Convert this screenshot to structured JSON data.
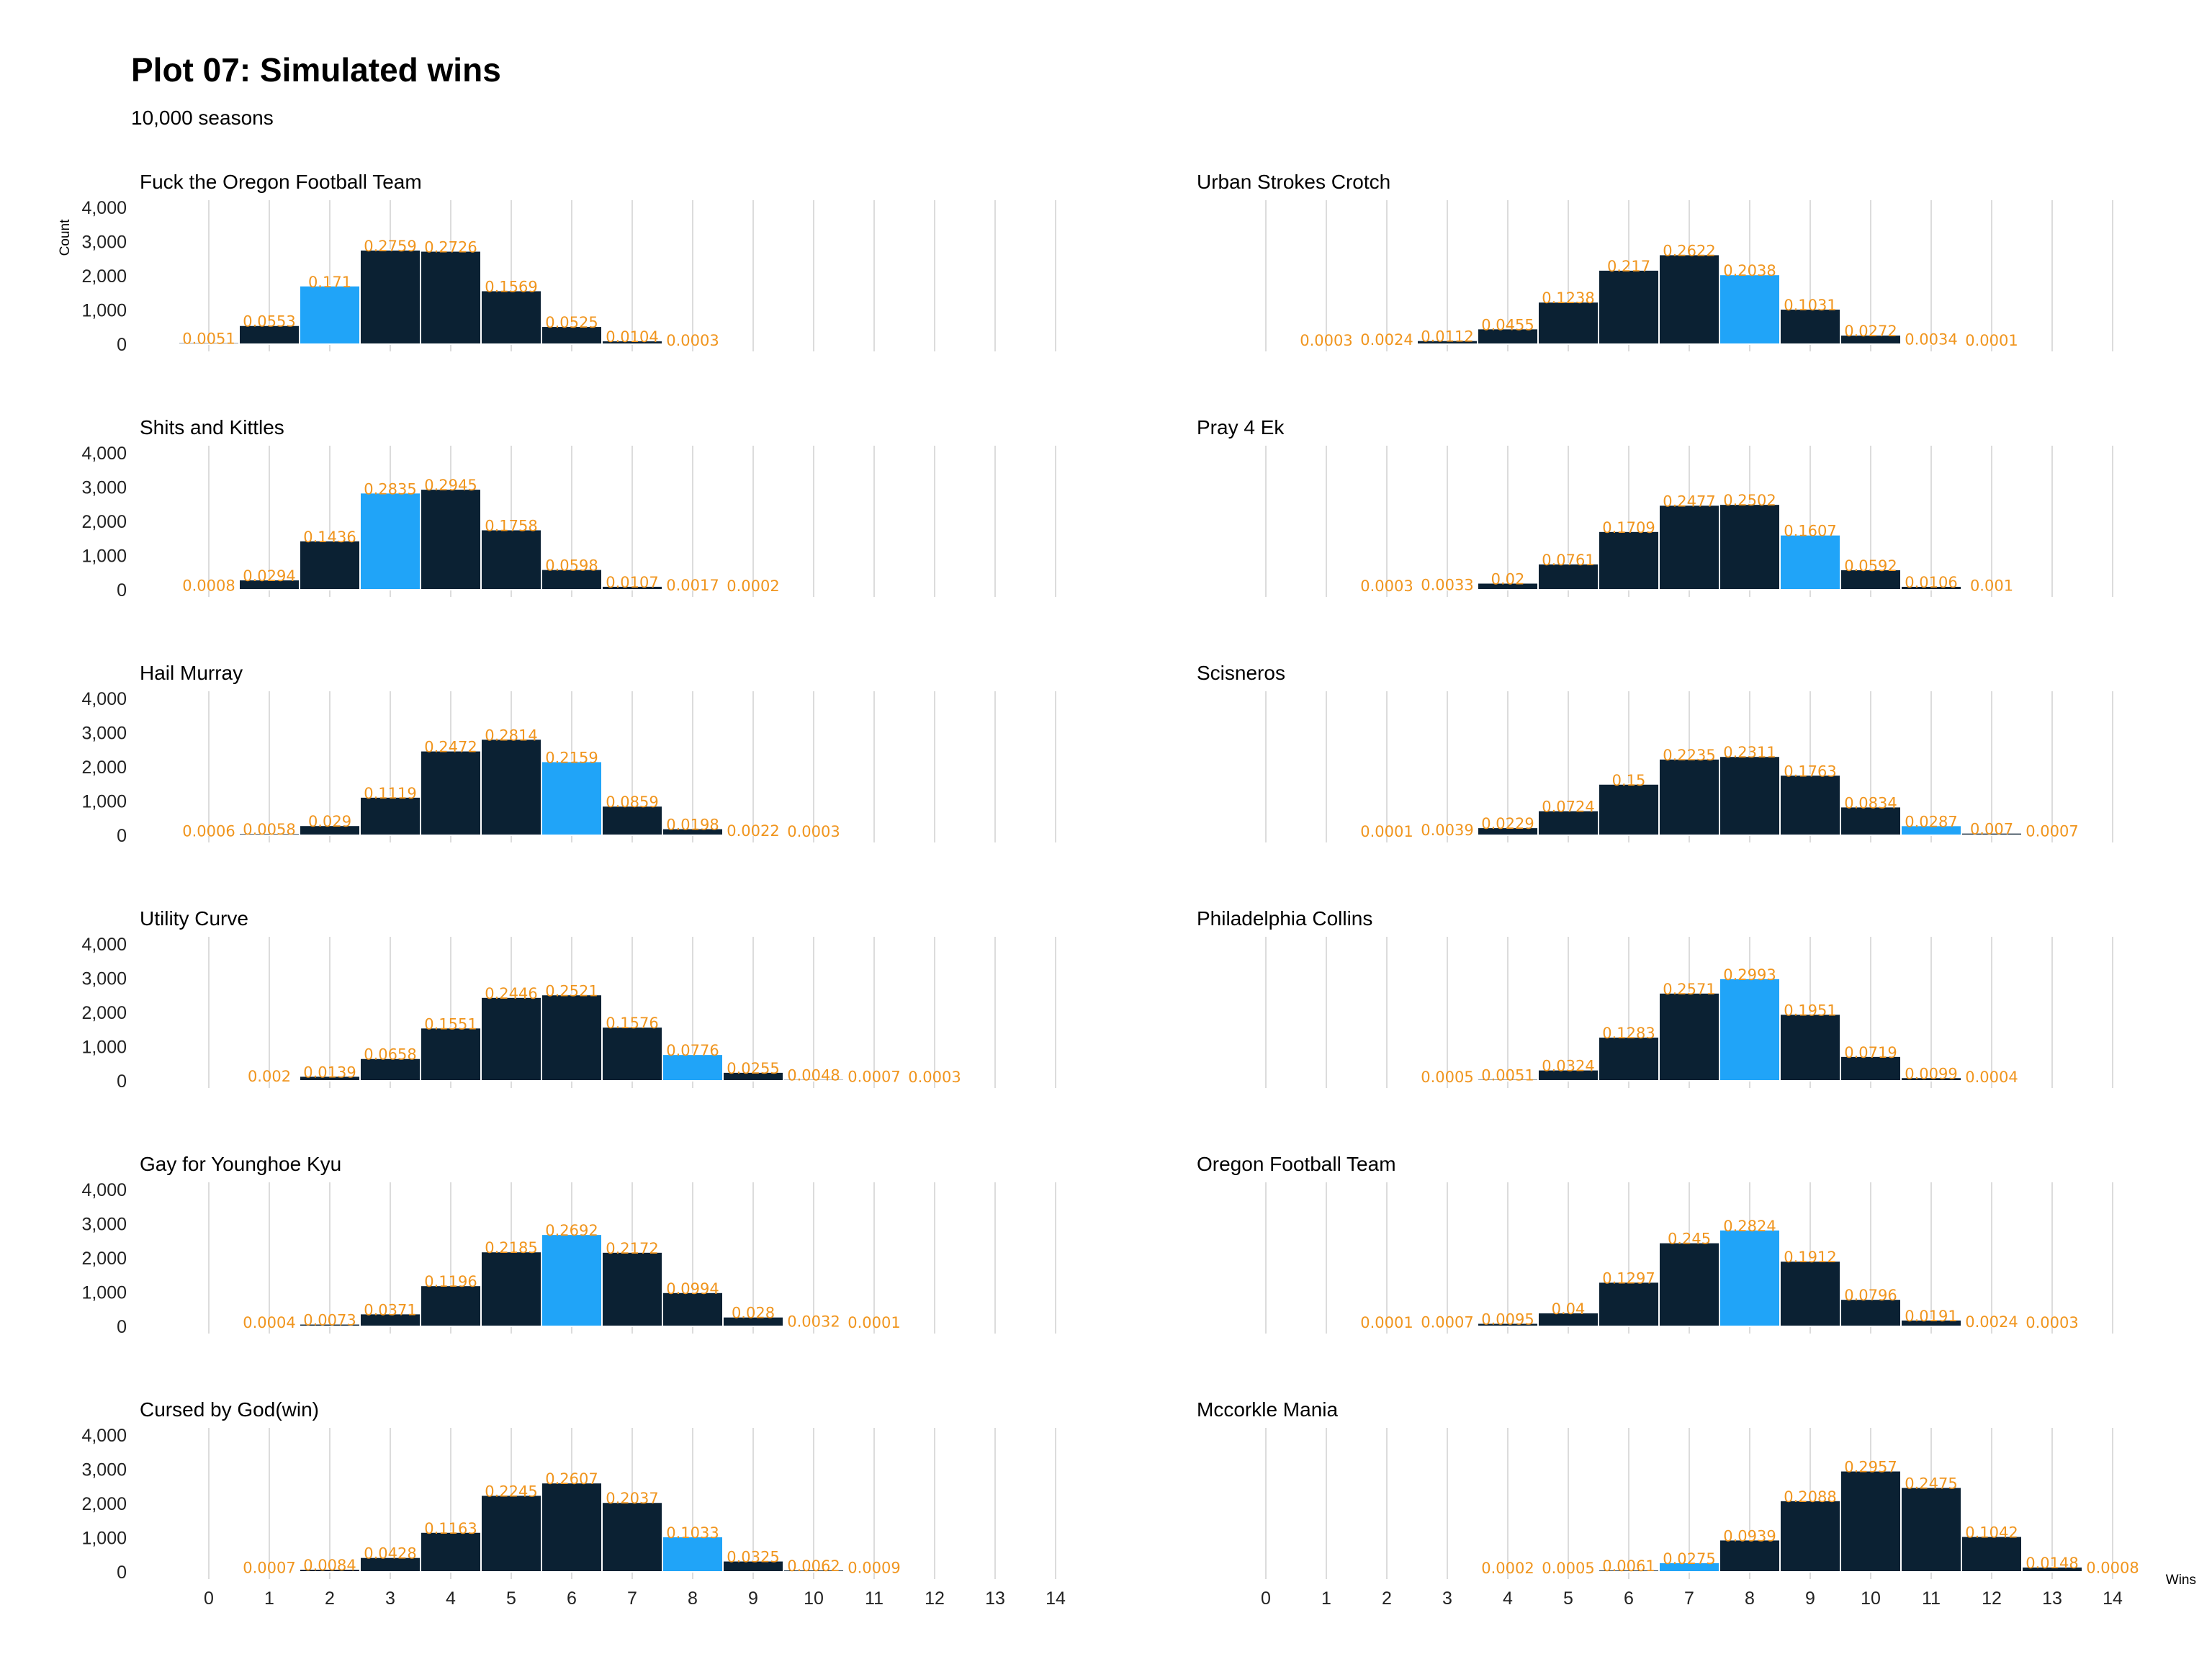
{
  "chart_data": {
    "type": "bar",
    "title": "Plot 07: Simulated wins",
    "subtitle": "10,000 seasons",
    "xlabel": "Wins",
    "ylabel": "Count",
    "x_ticks": [
      "0",
      "1",
      "2",
      "3",
      "4",
      "5",
      "6",
      "7",
      "8",
      "9",
      "10",
      "11",
      "12",
      "13",
      "14"
    ],
    "y_ticks": [
      "0",
      "1,000",
      "2,000",
      "3,000",
      "4,000"
    ],
    "xlim": [
      0,
      14
    ],
    "ylim": [
      0,
      4000
    ],
    "grid": "vertical",
    "colors": {
      "bar": "#0b2133",
      "highlight": "#20a4f8",
      "label": "#f0951e",
      "grid": "#dcdcdc"
    },
    "panels": [
      {
        "name": "Fuck the Oregon Football Team",
        "highlight_win": 2,
        "points": [
          {
            "win": 0,
            "prob": 0.0051,
            "label": "0.0051"
          },
          {
            "win": 1,
            "prob": 0.0553,
            "label": "0.0553"
          },
          {
            "win": 2,
            "prob": 0.171,
            "label": "0.171"
          },
          {
            "win": 3,
            "prob": 0.2759,
            "label": "0.2759"
          },
          {
            "win": 4,
            "prob": 0.2726,
            "label": "0.2726"
          },
          {
            "win": 5,
            "prob": 0.1569,
            "label": "0.1569"
          },
          {
            "win": 6,
            "prob": 0.0525,
            "label": "0.0525"
          },
          {
            "win": 7,
            "prob": 0.0104,
            "label": "0.0104"
          },
          {
            "win": 8,
            "prob": 0.0003,
            "label": "0.0003"
          }
        ]
      },
      {
        "name": "Urban Strokes Crotch",
        "highlight_win": 8,
        "points": [
          {
            "win": 1,
            "prob": 0.0003,
            "label": "0.0003"
          },
          {
            "win": 2,
            "prob": 0.0024,
            "label": "0.0024"
          },
          {
            "win": 3,
            "prob": 0.0112,
            "label": "0.0112"
          },
          {
            "win": 4,
            "prob": 0.0455,
            "label": "0.0455"
          },
          {
            "win": 5,
            "prob": 0.1238,
            "label": "0.1238"
          },
          {
            "win": 6,
            "prob": 0.217,
            "label": "0.217"
          },
          {
            "win": 7,
            "prob": 0.2622,
            "label": "0.2622"
          },
          {
            "win": 8,
            "prob": 0.2038,
            "label": "0.2038"
          },
          {
            "win": 9,
            "prob": 0.1031,
            "label": "0.1031"
          },
          {
            "win": 10,
            "prob": 0.0272,
            "label": "0.0272"
          },
          {
            "win": 11,
            "prob": 0.0034,
            "label": "0.0034"
          },
          {
            "win": 12,
            "prob": 0.0001,
            "label": "0.0001"
          }
        ]
      },
      {
        "name": "Shits and Kittles",
        "highlight_win": 3,
        "points": [
          {
            "win": 0,
            "prob": 0.0008,
            "label": "0.0008"
          },
          {
            "win": 1,
            "prob": 0.0294,
            "label": "0.0294"
          },
          {
            "win": 2,
            "prob": 0.1436,
            "label": "0.1436"
          },
          {
            "win": 3,
            "prob": 0.2835,
            "label": "0.2835"
          },
          {
            "win": 4,
            "prob": 0.2945,
            "label": "0.2945"
          },
          {
            "win": 5,
            "prob": 0.1758,
            "label": "0.1758"
          },
          {
            "win": 6,
            "prob": 0.0598,
            "label": "0.0598"
          },
          {
            "win": 7,
            "prob": 0.0107,
            "label": "0.0107"
          },
          {
            "win": 8,
            "prob": 0.0017,
            "label": "0.0017"
          },
          {
            "win": 9,
            "prob": 0.0002,
            "label": "0.0002"
          }
        ]
      },
      {
        "name": "Pray 4 Ek",
        "highlight_win": 9,
        "points": [
          {
            "win": 2,
            "prob": 0.0003,
            "label": "0.0003"
          },
          {
            "win": 3,
            "prob": 0.0033,
            "label": "0.0033"
          },
          {
            "win": 4,
            "prob": 0.02,
            "label": "0.02"
          },
          {
            "win": 5,
            "prob": 0.0761,
            "label": "0.0761"
          },
          {
            "win": 6,
            "prob": 0.1709,
            "label": "0.1709"
          },
          {
            "win": 7,
            "prob": 0.2477,
            "label": "0.2477"
          },
          {
            "win": 8,
            "prob": 0.2502,
            "label": "0.2502"
          },
          {
            "win": 9,
            "prob": 0.1607,
            "label": "0.1607"
          },
          {
            "win": 10,
            "prob": 0.0592,
            "label": "0.0592"
          },
          {
            "win": 11,
            "prob": 0.0106,
            "label": "0.0106"
          },
          {
            "win": 12,
            "prob": 0.001,
            "label": "0.001"
          }
        ]
      },
      {
        "name": "Hail Murray",
        "highlight_win": 6,
        "points": [
          {
            "win": 0,
            "prob": 0.0006,
            "label": "0.0006"
          },
          {
            "win": 1,
            "prob": 0.0058,
            "label": "0.0058"
          },
          {
            "win": 2,
            "prob": 0.029,
            "label": "0.029"
          },
          {
            "win": 3,
            "prob": 0.1119,
            "label": "0.1119"
          },
          {
            "win": 4,
            "prob": 0.2472,
            "label": "0.2472"
          },
          {
            "win": 5,
            "prob": 0.2814,
            "label": "0.2814"
          },
          {
            "win": 6,
            "prob": 0.2159,
            "label": "0.2159"
          },
          {
            "win": 7,
            "prob": 0.0859,
            "label": "0.0859"
          },
          {
            "win": 8,
            "prob": 0.0198,
            "label": "0.0198"
          },
          {
            "win": 9,
            "prob": 0.0022,
            "label": "0.0022"
          },
          {
            "win": 10,
            "prob": 0.0003,
            "label": "0.0003"
          }
        ]
      },
      {
        "name": "Scisneros",
        "highlight_win": 11,
        "points": [
          {
            "win": 2,
            "prob": 0.0001,
            "label": "0.0001"
          },
          {
            "win": 3,
            "prob": 0.0039,
            "label": "0.0039"
          },
          {
            "win": 4,
            "prob": 0.0229,
            "label": "0.0229"
          },
          {
            "win": 5,
            "prob": 0.0724,
            "label": "0.0724"
          },
          {
            "win": 6,
            "prob": 0.15,
            "label": "0.15"
          },
          {
            "win": 7,
            "prob": 0.2235,
            "label": "0.2235"
          },
          {
            "win": 8,
            "prob": 0.2311,
            "label": "0.2311"
          },
          {
            "win": 9,
            "prob": 0.1763,
            "label": "0.1763"
          },
          {
            "win": 10,
            "prob": 0.0834,
            "label": "0.0834"
          },
          {
            "win": 11,
            "prob": 0.0287,
            "label": "0.0287"
          },
          {
            "win": 12,
            "prob": 0.007,
            "label": "0.007"
          },
          {
            "win": 13,
            "prob": 0.0007,
            "label": "0.0007"
          }
        ]
      },
      {
        "name": "Utility Curve",
        "highlight_win": 8,
        "points": [
          {
            "win": 1,
            "prob": 0.002,
            "label": "0.002"
          },
          {
            "win": 2,
            "prob": 0.0139,
            "label": "0.0139"
          },
          {
            "win": 3,
            "prob": 0.0658,
            "label": "0.0658"
          },
          {
            "win": 4,
            "prob": 0.1551,
            "label": "0.1551"
          },
          {
            "win": 5,
            "prob": 0.2446,
            "label": "0.2446"
          },
          {
            "win": 6,
            "prob": 0.2521,
            "label": "0.2521"
          },
          {
            "win": 7,
            "prob": 0.1576,
            "label": "0.1576"
          },
          {
            "win": 8,
            "prob": 0.0776,
            "label": "0.0776"
          },
          {
            "win": 9,
            "prob": 0.0255,
            "label": "0.0255"
          },
          {
            "win": 10,
            "prob": 0.0048,
            "label": "0.0048"
          },
          {
            "win": 11,
            "prob": 0.0007,
            "label": "0.0007"
          },
          {
            "win": 12,
            "prob": 0.0003,
            "label": "0.0003"
          }
        ]
      },
      {
        "name": "Philadelphia Collins",
        "highlight_win": 8,
        "points": [
          {
            "win": 3,
            "prob": 0.0005,
            "label": "0.0005"
          },
          {
            "win": 4,
            "prob": 0.0051,
            "label": "0.0051"
          },
          {
            "win": 5,
            "prob": 0.0324,
            "label": "0.0324"
          },
          {
            "win": 6,
            "prob": 0.1283,
            "label": "0.1283"
          },
          {
            "win": 7,
            "prob": 0.2571,
            "label": "0.2571"
          },
          {
            "win": 8,
            "prob": 0.2993,
            "label": "0.2993"
          },
          {
            "win": 9,
            "prob": 0.1951,
            "label": "0.1951"
          },
          {
            "win": 10,
            "prob": 0.0719,
            "label": "0.0719"
          },
          {
            "win": 11,
            "prob": 0.0099,
            "label": "0.0099"
          },
          {
            "win": 12,
            "prob": 0.0004,
            "label": "0.0004"
          }
        ]
      },
      {
        "name": "Gay for Younghoe Kyu",
        "highlight_win": 6,
        "points": [
          {
            "win": 1,
            "prob": 0.0004,
            "label": "0.0004"
          },
          {
            "win": 2,
            "prob": 0.0073,
            "label": "0.0073"
          },
          {
            "win": 3,
            "prob": 0.0371,
            "label": "0.0371"
          },
          {
            "win": 4,
            "prob": 0.1196,
            "label": "0.1196"
          },
          {
            "win": 5,
            "prob": 0.2185,
            "label": "0.2185"
          },
          {
            "win": 6,
            "prob": 0.2692,
            "label": "0.2692"
          },
          {
            "win": 7,
            "prob": 0.2172,
            "label": "0.2172"
          },
          {
            "win": 8,
            "prob": 0.0994,
            "label": "0.0994"
          },
          {
            "win": 9,
            "prob": 0.028,
            "label": "0.028"
          },
          {
            "win": 10,
            "prob": 0.0032,
            "label": "0.0032"
          },
          {
            "win": 11,
            "prob": 0.0001,
            "label": "0.0001"
          }
        ]
      },
      {
        "name": "Oregon Football Team",
        "highlight_win": 8,
        "points": [
          {
            "win": 2,
            "prob": 0.0001,
            "label": "0.0001"
          },
          {
            "win": 3,
            "prob": 0.0007,
            "label": "0.0007"
          },
          {
            "win": 4,
            "prob": 0.0095,
            "label": "0.0095"
          },
          {
            "win": 5,
            "prob": 0.04,
            "label": "0.04"
          },
          {
            "win": 6,
            "prob": 0.1297,
            "label": "0.1297"
          },
          {
            "win": 7,
            "prob": 0.245,
            "label": "0.245"
          },
          {
            "win": 8,
            "prob": 0.2824,
            "label": "0.2824"
          },
          {
            "win": 9,
            "prob": 0.1912,
            "label": "0.1912"
          },
          {
            "win": 10,
            "prob": 0.0796,
            "label": "0.0796"
          },
          {
            "win": 11,
            "prob": 0.0191,
            "label": "0.0191"
          },
          {
            "win": 12,
            "prob": 0.0024,
            "label": "0.0024"
          },
          {
            "win": 13,
            "prob": 0.0003,
            "label": "0.0003"
          }
        ]
      },
      {
        "name": "Cursed by God(win)",
        "highlight_win": 8,
        "points": [
          {
            "win": 1,
            "prob": 0.0007,
            "label": "0.0007"
          },
          {
            "win": 2,
            "prob": 0.0084,
            "label": "0.0084"
          },
          {
            "win": 3,
            "prob": 0.0428,
            "label": "0.0428"
          },
          {
            "win": 4,
            "prob": 0.1163,
            "label": "0.1163"
          },
          {
            "win": 5,
            "prob": 0.2245,
            "label": "0.2245"
          },
          {
            "win": 6,
            "prob": 0.2607,
            "label": "0.2607"
          },
          {
            "win": 7,
            "prob": 0.2037,
            "label": "0.2037"
          },
          {
            "win": 8,
            "prob": 0.1033,
            "label": "0.1033"
          },
          {
            "win": 9,
            "prob": 0.0325,
            "label": "0.0325"
          },
          {
            "win": 10,
            "prob": 0.0062,
            "label": "0.0062"
          },
          {
            "win": 11,
            "prob": 0.0009,
            "label": "0.0009"
          }
        ]
      },
      {
        "name": "Mccorkle Mania",
        "highlight_win": 7,
        "points": [
          {
            "win": 4,
            "prob": 0.0002,
            "label": "0.0002"
          },
          {
            "win": 5,
            "prob": 0.0005,
            "label": "0.0005"
          },
          {
            "win": 6,
            "prob": 0.0061,
            "label": "0.0061"
          },
          {
            "win": 7,
            "prob": 0.0275,
            "label": "0.0275"
          },
          {
            "win": 8,
            "prob": 0.0939,
            "label": "0.0939"
          },
          {
            "win": 9,
            "prob": 0.2088,
            "label": "0.2088"
          },
          {
            "win": 10,
            "prob": 0.2957,
            "label": "0.2957"
          },
          {
            "win": 11,
            "prob": 0.2475,
            "label": "0.2475"
          },
          {
            "win": 12,
            "prob": 0.1042,
            "label": "0.1042"
          },
          {
            "win": 13,
            "prob": 0.0148,
            "label": "0.0148"
          },
          {
            "win": 14,
            "prob": 0.0008,
            "label": "0.0008"
          }
        ]
      }
    ]
  }
}
